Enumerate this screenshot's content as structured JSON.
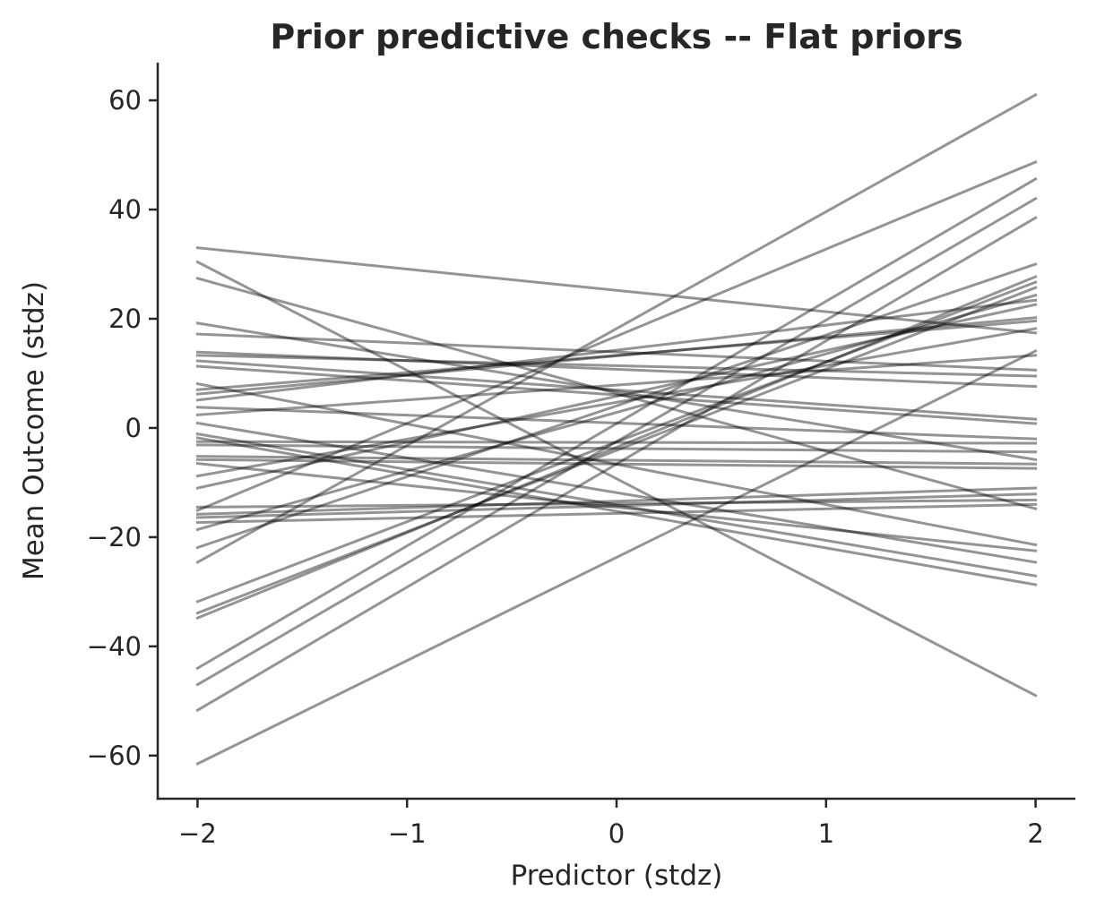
{
  "figure": {
    "title": "Prior predictive checks -- Flat priors",
    "xlabel": "Predictor (stdz)",
    "ylabel": "Mean Outcome (stdz)"
  },
  "colors": {
    "background": "#ffffff",
    "text": "#262626",
    "spine": "#262626",
    "line": "#000000"
  },
  "chart_data": {
    "type": "line",
    "title": "Prior predictive checks -- Flat priors",
    "xlabel": "Predictor (stdz)",
    "ylabel": "Mean Outcome (stdz)",
    "x_ticks": [
      -2,
      -1,
      0,
      1,
      2
    ],
    "y_ticks": [
      -60,
      -40,
      -20,
      0,
      20,
      40,
      60
    ],
    "xlim": [
      -2.19,
      2.19
    ],
    "ylim": [
      -67.9,
      66.9
    ],
    "grid": false,
    "legend": null,
    "line_alpha": 0.42,
    "x_range_of_lines": [
      -2,
      2
    ],
    "lines_y_endpoints": [
      [
        33.0,
        17.4
      ],
      [
        30.4,
        -49.0
      ],
      [
        27.4,
        -14.8
      ],
      [
        19.2,
        -5.8
      ],
      [
        17.2,
        10.6
      ],
      [
        13.9,
        7.6
      ],
      [
        13.3,
        9.5
      ],
      [
        12.3,
        1.6
      ],
      [
        11.3,
        0.8
      ],
      [
        8.1,
        -21.4
      ],
      [
        7.0,
        19.6
      ],
      [
        6.2,
        20.2
      ],
      [
        5.1,
        23.4
      ],
      [
        3.8,
        -2.0
      ],
      [
        2.4,
        13.3
      ],
      [
        0.9,
        -24.6
      ],
      [
        -1.1,
        -27.1
      ],
      [
        -1.8,
        -28.7
      ],
      [
        -2.5,
        -2.8
      ],
      [
        -3.1,
        -4.4
      ],
      [
        -5.2,
        -6.6
      ],
      [
        -5.8,
        -7.4
      ],
      [
        -6.5,
        -22.5
      ],
      [
        -8.8,
        18.2
      ],
      [
        -11.0,
        22.6
      ],
      [
        -14.5,
        -13.2
      ],
      [
        -15.1,
        48.7
      ],
      [
        -15.8,
        -11.0
      ],
      [
        -16.4,
        -12.1
      ],
      [
        -17.3,
        -14.0
      ],
      [
        -18.6,
        24.3
      ],
      [
        -21.9,
        30.0
      ],
      [
        -24.6,
        61.0
      ],
      [
        -31.8,
        26.7
      ],
      [
        -33.9,
        25.7
      ],
      [
        -34.8,
        27.7
      ],
      [
        -44.0,
        45.6
      ],
      [
        -47.0,
        42.0
      ],
      [
        -51.7,
        38.5
      ],
      [
        -61.5,
        14.1
      ]
    ]
  }
}
